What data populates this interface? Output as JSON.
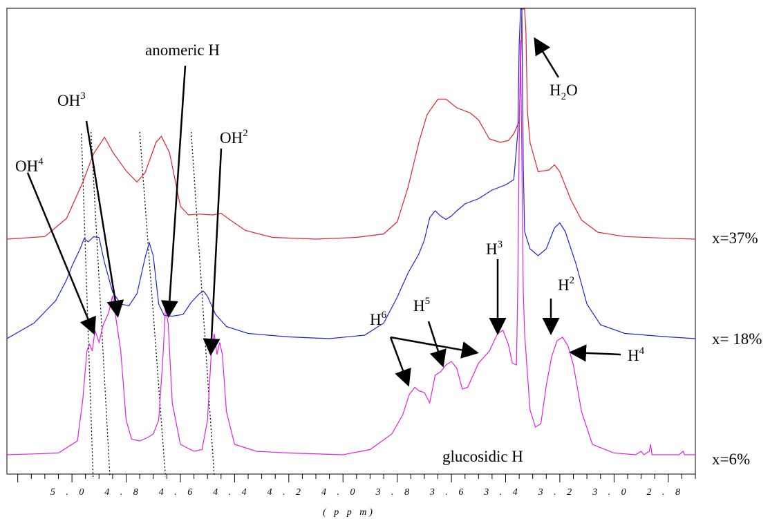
{
  "chart_data": {
    "type": "line",
    "title": "",
    "xlabel": "( p p m)",
    "ylabel": "",
    "x_reversed": true,
    "xlim": [
      5.24,
      2.7
    ],
    "grid": false,
    "ticks": {
      "major": [
        5.0,
        4.8,
        4.6,
        4.4,
        4.2,
        4.0,
        3.8,
        3.6,
        3.4,
        3.2,
        3.0,
        2.8
      ],
      "labels": [
        "5 . 0",
        "4 . 8",
        "4 . 6",
        "4 . 4",
        "4 . 2",
        "4 . 0",
        "3 . 8",
        "3 . 6",
        "3 . 4",
        "3 . 2",
        "3 . 0",
        "2 . 8"
      ]
    },
    "series": [
      {
        "name": "x=37%",
        "color": "#e0202a",
        "points": [
          [
            5.24,
            0.0
          ],
          [
            5.1,
            0.015
          ],
          [
            5.02,
            0.12
          ],
          [
            4.96,
            0.33
          ],
          [
            4.92,
            0.495
          ],
          [
            4.88,
            0.59
          ],
          [
            4.85,
            0.505
          ],
          [
            4.8,
            0.395
          ],
          [
            4.76,
            0.33
          ],
          [
            4.73,
            0.385
          ],
          [
            4.69,
            0.56
          ],
          [
            4.67,
            0.595
          ],
          [
            4.64,
            0.5
          ],
          [
            4.6,
            0.19
          ],
          [
            4.57,
            0.14
          ],
          [
            4.53,
            0.145
          ],
          [
            4.48,
            0.14
          ],
          [
            4.45,
            0.15
          ],
          [
            4.42,
            0.115
          ],
          [
            4.36,
            0.05
          ],
          [
            4.26,
            0.01
          ],
          [
            4.1,
            0.0
          ],
          [
            3.95,
            0.01
          ],
          [
            3.85,
            0.03
          ],
          [
            3.8,
            0.1
          ],
          [
            3.76,
            0.3
          ],
          [
            3.72,
            0.56
          ],
          [
            3.69,
            0.72
          ],
          [
            3.65,
            0.81
          ],
          [
            3.62,
            0.81
          ],
          [
            3.58,
            0.76
          ],
          [
            3.53,
            0.73
          ],
          [
            3.5,
            0.69
          ],
          [
            3.46,
            0.58
          ],
          [
            3.42,
            0.56
          ],
          [
            3.39,
            0.57
          ],
          [
            3.37,
            0.61
          ],
          [
            3.35,
            0.68
          ],
          [
            3.345,
            0.95
          ],
          [
            3.34,
            1.6
          ],
          [
            3.335,
            2.4
          ],
          [
            3.33,
            2.2
          ],
          [
            3.325,
            1.2
          ],
          [
            3.32,
            0.75
          ],
          [
            3.31,
            0.56
          ],
          [
            3.28,
            0.39
          ],
          [
            3.24,
            0.4
          ],
          [
            3.22,
            0.43
          ],
          [
            3.2,
            0.39
          ],
          [
            3.16,
            0.23
          ],
          [
            3.12,
            0.11
          ],
          [
            3.06,
            0.04
          ],
          [
            2.96,
            0.015
          ],
          [
            2.8,
            0.005
          ],
          [
            2.7,
            0.0
          ]
        ]
      },
      {
        "name": "x= 18%",
        "color": "#1b22d8",
        "points": [
          [
            5.24,
            0.0
          ],
          [
            5.14,
            0.09
          ],
          [
            5.06,
            0.22
          ],
          [
            5.02,
            0.34
          ],
          [
            5.0,
            0.42
          ],
          [
            4.97,
            0.52
          ],
          [
            4.955,
            0.58
          ],
          [
            4.94,
            0.56
          ],
          [
            4.92,
            0.59
          ],
          [
            4.9,
            0.585
          ],
          [
            4.88,
            0.44
          ],
          [
            4.85,
            0.27
          ],
          [
            4.82,
            0.2
          ],
          [
            4.79,
            0.19
          ],
          [
            4.76,
            0.26
          ],
          [
            4.73,
            0.47
          ],
          [
            4.715,
            0.555
          ],
          [
            4.7,
            0.48
          ],
          [
            4.68,
            0.2
          ],
          [
            4.66,
            0.135
          ],
          [
            4.63,
            0.13
          ],
          [
            4.59,
            0.14
          ],
          [
            4.56,
            0.21
          ],
          [
            4.53,
            0.26
          ],
          [
            4.515,
            0.275
          ],
          [
            4.5,
            0.245
          ],
          [
            4.47,
            0.14
          ],
          [
            4.43,
            0.07
          ],
          [
            4.35,
            0.03
          ],
          [
            4.2,
            0.01
          ],
          [
            4.05,
            0.0
          ],
          [
            3.92,
            0.02
          ],
          [
            3.85,
            0.09
          ],
          [
            3.8,
            0.24
          ],
          [
            3.76,
            0.38
          ],
          [
            3.72,
            0.49
          ],
          [
            3.7,
            0.57
          ],
          [
            3.68,
            0.7
          ],
          [
            3.66,
            0.74
          ],
          [
            3.64,
            0.71
          ],
          [
            3.62,
            0.69
          ],
          [
            3.6,
            0.71
          ],
          [
            3.58,
            0.74
          ],
          [
            3.55,
            0.78
          ],
          [
            3.5,
            0.81
          ],
          [
            3.45,
            0.86
          ],
          [
            3.4,
            0.89
          ],
          [
            3.37,
            0.92
          ],
          [
            3.355,
            1.2
          ],
          [
            3.35,
            1.7
          ],
          [
            3.345,
            2.4
          ],
          [
            3.34,
            2.1
          ],
          [
            3.335,
            1.0
          ],
          [
            3.33,
            0.62
          ],
          [
            3.31,
            0.52
          ],
          [
            3.28,
            0.48
          ],
          [
            3.25,
            0.52
          ],
          [
            3.22,
            0.64
          ],
          [
            3.2,
            0.67
          ],
          [
            3.18,
            0.62
          ],
          [
            3.14,
            0.43
          ],
          [
            3.1,
            0.2
          ],
          [
            3.05,
            0.08
          ],
          [
            2.96,
            0.03
          ],
          [
            2.8,
            0.01
          ],
          [
            2.7,
            0.0
          ]
        ]
      },
      {
        "name": "x=6%",
        "color": "#e020e0",
        "points": [
          [
            5.24,
            0.0
          ],
          [
            5.14,
            0.005
          ],
          [
            5.05,
            0.01
          ],
          [
            4.98,
            0.08
          ],
          [
            4.96,
            0.32
          ],
          [
            4.945,
            0.6
          ],
          [
            4.935,
            0.64
          ],
          [
            4.925,
            0.6
          ],
          [
            4.915,
            0.72
          ],
          [
            4.9,
            0.65
          ],
          [
            4.885,
            0.75
          ],
          [
            4.865,
            0.82
          ],
          [
            4.85,
            0.92
          ],
          [
            4.835,
            0.76
          ],
          [
            4.82,
            0.6
          ],
          [
            4.8,
            0.2
          ],
          [
            4.78,
            0.09
          ],
          [
            4.75,
            0.08
          ],
          [
            4.72,
            0.1
          ],
          [
            4.7,
            0.12
          ],
          [
            4.68,
            0.2
          ],
          [
            4.665,
            0.55
          ],
          [
            4.655,
            0.85
          ],
          [
            4.645,
            0.76
          ],
          [
            4.63,
            0.3
          ],
          [
            4.6,
            0.06
          ],
          [
            4.55,
            0.02
          ],
          [
            4.52,
            0.03
          ],
          [
            4.5,
            0.2
          ],
          [
            4.485,
            0.62
          ],
          [
            4.475,
            0.7
          ],
          [
            4.465,
            0.58
          ],
          [
            4.455,
            0.65
          ],
          [
            4.445,
            0.58
          ],
          [
            4.43,
            0.25
          ],
          [
            4.4,
            0.06
          ],
          [
            4.32,
            0.02
          ],
          [
            4.2,
            0.01
          ],
          [
            4.0,
            0.0
          ],
          [
            3.9,
            0.03
          ],
          [
            3.82,
            0.12
          ],
          [
            3.78,
            0.23
          ],
          [
            3.755,
            0.35
          ],
          [
            3.735,
            0.39
          ],
          [
            3.72,
            0.37
          ],
          [
            3.7,
            0.36
          ],
          [
            3.68,
            0.3
          ],
          [
            3.66,
            0.46
          ],
          [
            3.64,
            0.48
          ],
          [
            3.62,
            0.52
          ],
          [
            3.6,
            0.54
          ],
          [
            3.58,
            0.5
          ],
          [
            3.56,
            0.38
          ],
          [
            3.54,
            0.39
          ],
          [
            3.5,
            0.53
          ],
          [
            3.46,
            0.6
          ],
          [
            3.43,
            0.7
          ],
          [
            3.41,
            0.72
          ],
          [
            3.39,
            0.64
          ],
          [
            3.375,
            0.53
          ],
          [
            3.36,
            0.52
          ],
          [
            3.355,
            1.0
          ],
          [
            3.35,
            1.8
          ],
          [
            3.345,
            2.4
          ],
          [
            3.34,
            1.7
          ],
          [
            3.335,
            0.95
          ],
          [
            3.33,
            0.7
          ],
          [
            3.31,
            0.26
          ],
          [
            3.29,
            0.16
          ],
          [
            3.27,
            0.18
          ],
          [
            3.25,
            0.4
          ],
          [
            3.23,
            0.57
          ],
          [
            3.21,
            0.66
          ],
          [
            3.19,
            0.68
          ],
          [
            3.17,
            0.63
          ],
          [
            3.15,
            0.52
          ],
          [
            3.12,
            0.25
          ],
          [
            3.08,
            0.06
          ],
          [
            3.0,
            0.01
          ],
          [
            2.92,
            0.0
          ],
          [
            2.9,
            0.02
          ],
          [
            2.895,
            0.01
          ],
          [
            2.89,
            0.0
          ],
          [
            2.87,
            0.02
          ],
          [
            2.865,
            0.06
          ],
          [
            2.86,
            0.0
          ],
          [
            2.76,
            0.0
          ],
          [
            2.745,
            0.02
          ],
          [
            2.74,
            0.0
          ],
          [
            2.7,
            0.0
          ]
        ]
      }
    ],
    "guides": [
      [
        [
          4.965,
          0.61
        ],
        [
          4.922,
          0.0
        ]
      ],
      [
        [
          4.93,
          0.62
        ],
        [
          4.86,
          0.0
        ]
      ],
      [
        [
          4.75,
          0.62
        ],
        [
          4.655,
          0.0
        ]
      ],
      [
        [
          4.56,
          0.62
        ],
        [
          4.475,
          0.0
        ]
      ]
    ],
    "annotations": [
      {
        "base": "OH",
        "sup": "4",
        "sub": ""
      },
      {
        "base": "OH",
        "sup": "3",
        "sub": ""
      },
      {
        "base": "anomeric H",
        "sup": "",
        "sub": ""
      },
      {
        "base": "OH",
        "sup": "2",
        "sub": ""
      },
      {
        "base": "H",
        "sup": "",
        "sub": "2",
        "tail": "O"
      },
      {
        "base": "H",
        "sup": "3",
        "sub": ""
      },
      {
        "base": "H",
        "sup": "2",
        "sub": ""
      },
      {
        "base": "H",
        "sup": "6",
        "sub": ""
      },
      {
        "base": "H",
        "sup": "5",
        "sub": ""
      },
      {
        "base": "H",
        "sup": "4",
        "sub": ""
      },
      {
        "base": "glucosidic H",
        "sup": "",
        "sub": ""
      }
    ],
    "series_labels": [
      "x=37%",
      "x= 18%",
      "x=6%"
    ]
  }
}
